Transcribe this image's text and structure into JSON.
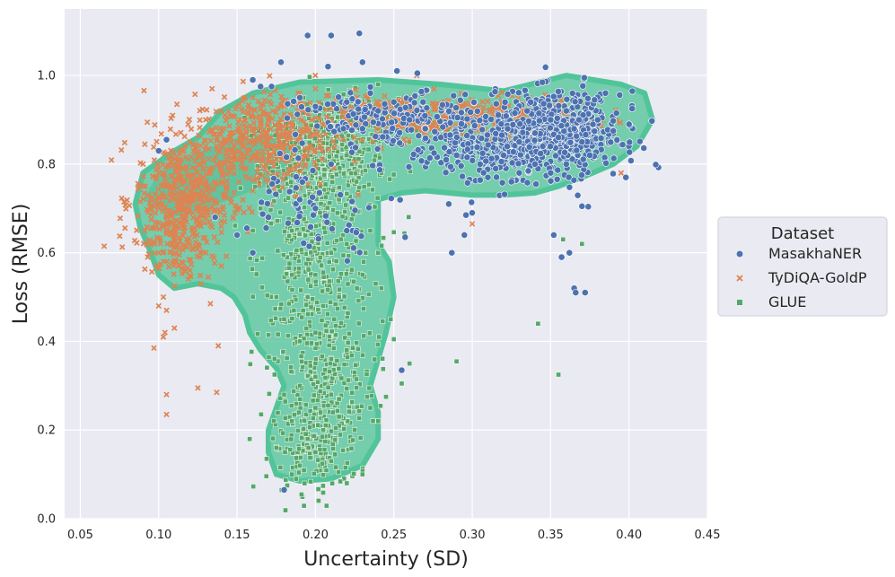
{
  "chart_data": {
    "type": "scatter",
    "xlabel": "Uncertainty (SD)",
    "ylabel": "Loss (RMSE)",
    "xlim": [
      0.04,
      0.45
    ],
    "ylim": [
      0.0,
      1.15
    ],
    "xticks": [
      "0.05",
      "0.10",
      "0.15",
      "0.20",
      "0.25",
      "0.30",
      "0.35",
      "0.40",
      "0.45"
    ],
    "yticks": [
      "0.0",
      "0.2",
      "0.4",
      "0.6",
      "0.8",
      "1.0"
    ],
    "grid": true,
    "legend": {
      "title": "Dataset",
      "placement": "outside-right",
      "entries": [
        "MasakhaNER",
        "TyDiQA-GoldP",
        "GLUE"
      ]
    },
    "density_contour": {
      "color": "#52c49a",
      "note_levels": 5
    },
    "series": [
      {
        "name": "MasakhaNER",
        "marker": "circle",
        "color": "#4c72b0",
        "approx_count": 1400,
        "points": [
          [
            0.195,
            1.09
          ],
          [
            0.21,
            1.09
          ],
          [
            0.228,
            1.095
          ],
          [
            0.178,
            1.03
          ],
          [
            0.23,
            1.03
          ],
          [
            0.208,
            1.02
          ],
          [
            0.252,
            1.01
          ],
          [
            0.265,
            1.005
          ],
          [
            0.16,
            0.99
          ],
          [
            0.165,
            0.975
          ],
          [
            0.172,
            0.975
          ],
          [
            0.255,
            0.335
          ],
          [
            0.18,
            0.065
          ],
          [
            0.287,
            0.6
          ],
          [
            0.295,
            0.64
          ],
          [
            0.296,
            0.685
          ],
          [
            0.3,
            0.69
          ],
          [
            0.352,
            0.64
          ],
          [
            0.357,
            0.59
          ],
          [
            0.362,
            0.6
          ],
          [
            0.365,
            0.52
          ],
          [
            0.366,
            0.51
          ],
          [
            0.372,
            0.51
          ],
          [
            0.37,
            0.705
          ],
          [
            0.398,
            0.77
          ],
          [
            0.105,
            0.855
          ],
          [
            0.1,
            0.83
          ],
          [
            0.385,
            0.96
          ],
          [
            0.378,
            0.945
          ],
          [
            0.392,
            0.915
          ],
          [
            0.4,
            0.89
          ],
          [
            0.402,
            0.925
          ],
          [
            0.39,
            0.875
          ],
          [
            0.31,
            0.77
          ],
          [
            0.305,
            0.8
          ],
          [
            0.32,
            0.82
          ],
          [
            0.33,
            0.85
          ],
          [
            0.34,
            0.87
          ],
          [
            0.35,
            0.9
          ],
          [
            0.36,
            0.92
          ],
          [
            0.345,
            0.84
          ],
          [
            0.355,
            0.86
          ],
          [
            0.365,
            0.88
          ],
          [
            0.37,
            0.85
          ],
          [
            0.375,
            0.82
          ],
          [
            0.36,
            0.8
          ],
          [
            0.35,
            0.78
          ],
          [
            0.34,
            0.8
          ],
          [
            0.33,
            0.78
          ],
          [
            0.325,
            0.76
          ],
          [
            0.315,
            0.79
          ],
          [
            0.38,
            0.9
          ],
          [
            0.335,
            0.92
          ],
          [
            0.29,
            0.82
          ],
          [
            0.28,
            0.86
          ],
          [
            0.27,
            0.88
          ],
          [
            0.26,
            0.9
          ],
          [
            0.24,
            0.92
          ],
          [
            0.22,
            0.94
          ],
          [
            0.2,
            0.93
          ],
          [
            0.19,
            0.95
          ],
          [
            0.235,
            0.96
          ],
          [
            0.25,
            0.94
          ],
          [
            0.23,
            0.88
          ],
          [
            0.21,
            0.8
          ],
          [
            0.2,
            0.7
          ],
          [
            0.19,
            0.72
          ],
          [
            0.17,
            0.68
          ],
          [
            0.15,
            0.64
          ],
          [
            0.16,
            0.6
          ],
          [
            0.22,
            0.65
          ],
          [
            0.285,
            0.71
          ]
        ]
      },
      {
        "name": "TyDiQA-GoldP",
        "marker": "x",
        "color": "#dd8452",
        "approx_count": 1500,
        "points": [
          [
            0.097,
            0.385
          ],
          [
            0.103,
            0.41
          ],
          [
            0.104,
            0.42
          ],
          [
            0.11,
            0.43
          ],
          [
            0.105,
            0.28
          ],
          [
            0.105,
            0.235
          ],
          [
            0.125,
            0.295
          ],
          [
            0.137,
            0.285
          ],
          [
            0.138,
            0.39
          ],
          [
            0.133,
            0.485
          ],
          [
            0.127,
            0.53
          ],
          [
            0.1,
            0.48
          ],
          [
            0.103,
            0.5
          ],
          [
            0.105,
            0.47
          ],
          [
            0.395,
            0.78
          ],
          [
            0.3,
            0.665
          ],
          [
            0.09,
            0.75
          ],
          [
            0.095,
            0.72
          ],
          [
            0.1,
            0.7
          ],
          [
            0.105,
            0.68
          ],
          [
            0.11,
            0.66
          ],
          [
            0.115,
            0.64
          ],
          [
            0.12,
            0.62
          ],
          [
            0.1,
            0.6
          ],
          [
            0.11,
            0.58
          ],
          [
            0.12,
            0.56
          ],
          [
            0.13,
            0.6
          ],
          [
            0.14,
            0.66
          ],
          [
            0.15,
            0.7
          ],
          [
            0.16,
            0.74
          ],
          [
            0.17,
            0.78
          ],
          [
            0.18,
            0.82
          ],
          [
            0.19,
            0.86
          ],
          [
            0.2,
            0.88
          ],
          [
            0.21,
            0.9
          ],
          [
            0.22,
            0.91
          ],
          [
            0.23,
            0.92
          ],
          [
            0.24,
            0.93
          ],
          [
            0.25,
            0.94
          ],
          [
            0.26,
            0.935
          ],
          [
            0.27,
            0.93
          ],
          [
            0.28,
            0.92
          ],
          [
            0.29,
            0.91
          ],
          [
            0.3,
            0.9
          ],
          [
            0.31,
            0.9
          ],
          [
            0.32,
            0.91
          ],
          [
            0.33,
            0.92
          ],
          [
            0.34,
            0.9
          ],
          [
            0.35,
            0.88
          ],
          [
            0.36,
            0.87
          ],
          [
            0.13,
            0.9
          ],
          [
            0.14,
            0.92
          ],
          [
            0.15,
            0.93
          ],
          [
            0.16,
            0.95
          ],
          [
            0.12,
            0.85
          ],
          [
            0.11,
            0.8
          ],
          [
            0.1,
            0.78
          ],
          [
            0.09,
            0.8
          ],
          [
            0.13,
            0.75
          ],
          [
            0.14,
            0.8
          ],
          [
            0.15,
            0.85
          ],
          [
            0.16,
            0.88
          ],
          [
            0.17,
            0.9
          ],
          [
            0.18,
            0.93
          ],
          [
            0.19,
            0.96
          ],
          [
            0.2,
            0.97
          ],
          [
            0.215,
            0.95
          ],
          [
            0.2,
            0.83
          ],
          [
            0.225,
            0.86
          ],
          [
            0.245,
            0.88
          ],
          [
            0.27,
            0.87
          ],
          [
            0.3,
            0.86
          ]
        ]
      },
      {
        "name": "GLUE",
        "marker": "square",
        "color": "#55a868",
        "approx_count": 1400,
        "points": [
          [
            0.182,
            0.075
          ],
          [
            0.22,
            0.08
          ],
          [
            0.185,
            0.1
          ],
          [
            0.19,
            0.12
          ],
          [
            0.2,
            0.15
          ],
          [
            0.21,
            0.13
          ],
          [
            0.23,
            0.1
          ],
          [
            0.195,
            0.18
          ],
          [
            0.205,
            0.2
          ],
          [
            0.225,
            0.2
          ],
          [
            0.175,
            0.16
          ],
          [
            0.185,
            0.22
          ],
          [
            0.2,
            0.25
          ],
          [
            0.215,
            0.27
          ],
          [
            0.235,
            0.25
          ],
          [
            0.24,
            0.22
          ],
          [
            0.245,
            0.275
          ],
          [
            0.255,
            0.305
          ],
          [
            0.29,
            0.355
          ],
          [
            0.25,
            0.405
          ],
          [
            0.355,
            0.325
          ],
          [
            0.342,
            0.44
          ],
          [
            0.358,
            0.63
          ],
          [
            0.37,
            0.62
          ],
          [
            0.165,
            0.975
          ],
          [
            0.24,
            0.98
          ],
          [
            0.18,
            0.45
          ],
          [
            0.19,
            0.4
          ],
          [
            0.2,
            0.42
          ],
          [
            0.21,
            0.36
          ],
          [
            0.22,
            0.38
          ],
          [
            0.2,
            0.35
          ],
          [
            0.175,
            0.5
          ],
          [
            0.185,
            0.55
          ],
          [
            0.195,
            0.5
          ],
          [
            0.2,
            0.55
          ],
          [
            0.21,
            0.6
          ],
          [
            0.22,
            0.62
          ],
          [
            0.185,
            0.65
          ],
          [
            0.19,
            0.7
          ],
          [
            0.195,
            0.75
          ],
          [
            0.2,
            0.78
          ],
          [
            0.21,
            0.8
          ],
          [
            0.22,
            0.82
          ],
          [
            0.23,
            0.85
          ],
          [
            0.24,
            0.88
          ],
          [
            0.25,
            0.9
          ],
          [
            0.26,
            0.85
          ],
          [
            0.17,
            0.75
          ],
          [
            0.175,
            0.8
          ],
          [
            0.18,
            0.85
          ],
          [
            0.165,
            0.7
          ],
          [
            0.16,
            0.65
          ],
          [
            0.215,
            0.72
          ],
          [
            0.225,
            0.7
          ],
          [
            0.235,
            0.65
          ],
          [
            0.24,
            0.6
          ],
          [
            0.23,
            0.55
          ],
          [
            0.215,
            0.5
          ],
          [
            0.205,
            0.48
          ],
          [
            0.19,
            0.3
          ],
          [
            0.2,
            0.32
          ],
          [
            0.21,
            0.28
          ],
          [
            0.215,
            0.23
          ],
          [
            0.18,
            0.28
          ],
          [
            0.225,
            0.33
          ],
          [
            0.26,
            0.35
          ],
          [
            0.248,
            0.45
          ],
          [
            0.242,
            0.52
          ],
          [
            0.232,
            0.6
          ],
          [
            0.27,
            0.9
          ],
          [
            0.28,
            0.88
          ]
        ]
      }
    ]
  }
}
